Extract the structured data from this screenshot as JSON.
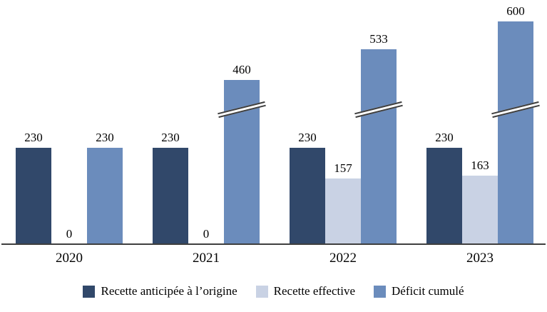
{
  "chart_data": {
    "type": "bar",
    "title": "",
    "categories": [
      "2020",
      "2021",
      "2022",
      "2023"
    ],
    "series": [
      {
        "name": "Recette anticipée à l’origine",
        "color": "#31486A",
        "values": [
          230,
          230,
          230,
          230
        ],
        "breaks": [
          false,
          false,
          false,
          false
        ]
      },
      {
        "name": "Recette effective",
        "color": "#C9D2E4",
        "values": [
          0,
          0,
          157,
          163
        ],
        "breaks": [
          false,
          false,
          false,
          false
        ]
      },
      {
        "name": "Déficit cumulé",
        "color": "#6B8CBC",
        "values": [
          230,
          460,
          533,
          600
        ],
        "breaks": [
          false,
          true,
          true,
          true
        ]
      }
    ],
    "data_labels": true,
    "grid": false,
    "legend_position": "bottom",
    "axis": {
      "baseline_color": "#3f3f3f",
      "y_axis_visible": false
    },
    "annotations": "Tall Déficit-cumulé bars (460, 533, 600) are drawn truncated with a diagonal axis-break mark"
  }
}
